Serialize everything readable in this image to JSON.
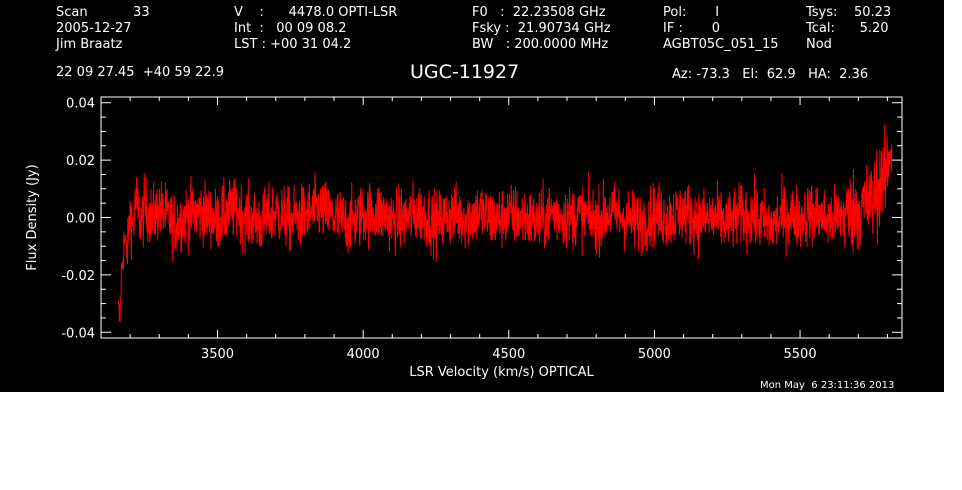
{
  "header": {
    "row1": [
      {
        "text": "Scan           33",
        "key": "scan"
      },
      {
        "text": "V    :      4478.0 OPTI-LSR",
        "key": "velocity"
      },
      {
        "text": "F0   :  22.23508 GHz",
        "key": "f0"
      },
      {
        "text": "Pol:       I",
        "key": "pol"
      },
      {
        "text": "Tsys:    50.23",
        "key": "tsys"
      }
    ],
    "row2": [
      {
        "text": "2005-12-27",
        "key": "date"
      },
      {
        "text": "Int  :   00 09 08.2",
        "key": "int"
      },
      {
        "text": "Fsky :  21.90734 GHz",
        "key": "fsky"
      },
      {
        "text": "IF :       0",
        "key": "if"
      },
      {
        "text": "Tcal:      5.20",
        "key": "tcal"
      }
    ],
    "row3": [
      {
        "text": "Jim Braatz",
        "key": "observer"
      },
      {
        "text": "LST : +00 31 04.2",
        "key": "lst"
      },
      {
        "text": "BW   : 200.0000 MHz",
        "key": "bw"
      },
      {
        "text": "AGBT05C_051_15",
        "key": "project"
      },
      {
        "text": "Nod",
        "key": "procedure"
      }
    ],
    "coords": "22 09 27.45  +40 59 22.9",
    "source": "UGC-11927",
    "azelha": "Az: -73.3   El:  62.9   HA:  2.36",
    "timestamp": "Mon May  6 23:11:36 2013"
  },
  "colors": {
    "background": "#000000",
    "axes": "#ffffff",
    "spectrum": "#ff0000"
  },
  "chart_data": {
    "type": "line",
    "title": "UGC-11927",
    "xlabel": "LSR Velocity (km/s) OPTICAL",
    "ylabel": "Flux Density (Jy)",
    "xlim": [
      3100,
      5850
    ],
    "ylim": [
      -0.042,
      0.042
    ],
    "xticks": [
      3500,
      4000,
      4500,
      5000,
      5500
    ],
    "xtick_labels": [
      "3500",
      "4000",
      "4500",
      "5000",
      "5500"
    ],
    "yticks": [
      -0.04,
      -0.02,
      0.0,
      0.02,
      0.04
    ],
    "ytick_labels": [
      "-0.04",
      "-0.02",
      "0.00",
      "0.02",
      "0.04"
    ],
    "grid": false,
    "series": [
      {
        "x": [
          3160,
          3165,
          3170,
          3180,
          3190,
          3200,
          3210,
          3220,
          3230,
          3240,
          3250,
          3275,
          3300,
          3350,
          3400,
          3450,
          3500,
          3550,
          3600,
          3650,
          3700,
          3750,
          3800,
          3850,
          3900,
          3950,
          4000,
          4050,
          4100,
          4150,
          4200,
          4250,
          4300,
          4350,
          4400,
          4450,
          4500,
          4550,
          4600,
          4650,
          4700,
          4750,
          4800,
          4850,
          4900,
          4950,
          5000,
          5050,
          5100,
          5150,
          5200,
          5250,
          5300,
          5350,
          5400,
          5450,
          5500,
          5550,
          5600,
          5650,
          5700,
          5725,
          5750,
          5770,
          5780,
          5790,
          5800,
          5810,
          5815
        ],
        "y": [
          -0.033,
          -0.036,
          -0.02,
          -0.008,
          -0.012,
          0.002,
          -0.004,
          0.006,
          0.001,
          -0.002,
          0.004,
          0.0,
          0.003,
          -0.002,
          0.001,
          0.002,
          -0.001,
          0.003,
          0.0,
          -0.002,
          0.002,
          -0.001,
          0.001,
          0.003,
          0.0,
          -0.002,
          0.001,
          0.002,
          -0.001,
          0.0,
          0.002,
          -0.002,
          0.001,
          0.0,
          0.002,
          -0.001,
          0.001,
          0.0,
          -0.002,
          0.002,
          0.0,
          0.001,
          -0.001,
          0.002,
          0.0,
          -0.002,
          0.001,
          0.0,
          0.002,
          -0.001,
          0.0,
          -0.002,
          0.001,
          0.0,
          -0.003,
          0.001,
          0.0,
          0.002,
          -0.001,
          0.001,
          0.003,
          0.004,
          0.006,
          0.01,
          0.014,
          0.012,
          0.018,
          0.026,
          0.022
        ]
      }
    ]
  }
}
